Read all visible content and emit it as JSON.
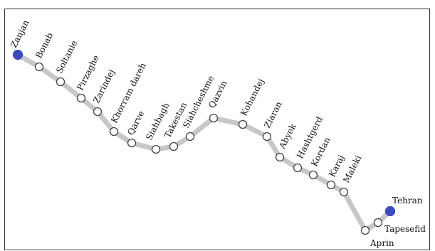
{
  "diagram": {
    "line_color": "#c7c7c7",
    "terminal_color": "#3b4cc0",
    "stop_fill": "#ffffff",
    "stop_stroke": "#444444",
    "stations": [
      {
        "name": "Zanjan",
        "terminal": true
      },
      {
        "name": "Bonab"
      },
      {
        "name": "Soltanie"
      },
      {
        "name": "Pirzaghe"
      },
      {
        "name": "Zarindej"
      },
      {
        "name": "Khorram dareh"
      },
      {
        "name": "Qarve"
      },
      {
        "name": "Siahbagh"
      },
      {
        "name": "Takestan"
      },
      {
        "name": "Siahcheshme"
      },
      {
        "name": "Qazvin"
      },
      {
        "name": "Kohandej"
      },
      {
        "name": "Ziaran"
      },
      {
        "name": "Abyek"
      },
      {
        "name": "Hashtgerd"
      },
      {
        "name": "Kordan"
      },
      {
        "name": "Karaj"
      },
      {
        "name": "Maleki"
      },
      {
        "name": "Aprin"
      },
      {
        "name": "Tapesefid"
      },
      {
        "name": "Tehran",
        "terminal": true
      }
    ]
  }
}
